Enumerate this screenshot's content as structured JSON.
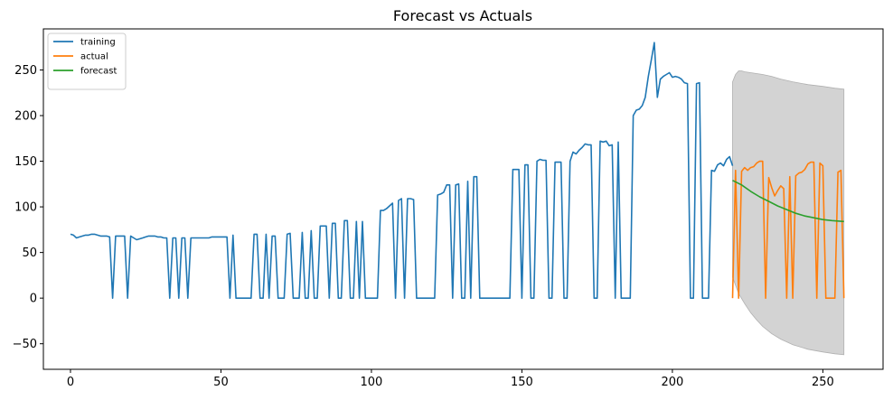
{
  "chart_data": {
    "type": "line",
    "title": "Forecast vs Actuals",
    "xlabel": "",
    "ylabel": "",
    "xlim": [
      -9,
      270
    ],
    "ylim": [
      -78,
      295
    ],
    "x_ticks": [
      0,
      50,
      100,
      150,
      200,
      250
    ],
    "y_ticks": [
      -50,
      0,
      50,
      100,
      150,
      200,
      250
    ],
    "grid": false,
    "legend": {
      "position": "top-left",
      "entries": [
        "training",
        "actual",
        "forecast"
      ]
    },
    "colors": {
      "training": "#1f77b4",
      "actual": "#ff7f0e",
      "forecast": "#2ca02c",
      "band": "#d3d3d3"
    },
    "series": [
      {
        "name": "training",
        "points": [
          [
            0,
            70
          ],
          [
            1,
            69
          ],
          [
            2,
            66
          ],
          [
            3,
            67
          ],
          [
            4,
            68
          ],
          [
            5,
            69
          ],
          [
            6,
            69
          ],
          [
            7,
            70
          ],
          [
            8,
            70
          ],
          [
            9,
            69
          ],
          [
            10,
            68
          ],
          [
            11,
            68
          ],
          [
            12,
            68
          ],
          [
            13,
            67
          ],
          [
            14,
            0
          ],
          [
            15,
            68
          ],
          [
            16,
            68
          ],
          [
            17,
            68
          ],
          [
            18,
            68
          ],
          [
            19,
            0
          ],
          [
            20,
            68
          ],
          [
            21,
            66
          ],
          [
            22,
            64
          ],
          [
            23,
            65
          ],
          [
            24,
            66
          ],
          [
            25,
            67
          ],
          [
            26,
            68
          ],
          [
            27,
            68
          ],
          [
            28,
            68
          ],
          [
            29,
            67
          ],
          [
            30,
            67
          ],
          [
            31,
            66
          ],
          [
            32,
            66
          ],
          [
            33,
            0
          ],
          [
            34,
            66
          ],
          [
            35,
            66
          ],
          [
            36,
            0
          ],
          [
            37,
            66
          ],
          [
            38,
            66
          ],
          [
            39,
            0
          ],
          [
            40,
            66
          ],
          [
            41,
            66
          ],
          [
            42,
            66
          ],
          [
            43,
            66
          ],
          [
            44,
            66
          ],
          [
            45,
            66
          ],
          [
            46,
            66
          ],
          [
            47,
            67
          ],
          [
            48,
            67
          ],
          [
            49,
            67
          ],
          [
            50,
            67
          ],
          [
            51,
            67
          ],
          [
            52,
            67
          ],
          [
            53,
            0
          ],
          [
            54,
            69
          ],
          [
            55,
            0
          ],
          [
            56,
            0
          ],
          [
            57,
            0
          ],
          [
            58,
            0
          ],
          [
            59,
            0
          ],
          [
            60,
            0
          ],
          [
            61,
            70
          ],
          [
            62,
            70
          ],
          [
            63,
            0
          ],
          [
            64,
            0
          ],
          [
            65,
            70
          ],
          [
            66,
            0
          ],
          [
            67,
            68
          ],
          [
            68,
            68
          ],
          [
            69,
            0
          ],
          [
            70,
            0
          ],
          [
            71,
            0
          ],
          [
            72,
            70
          ],
          [
            73,
            71
          ],
          [
            74,
            0
          ],
          [
            75,
            0
          ],
          [
            76,
            0
          ],
          [
            77,
            72
          ],
          [
            78,
            0
          ],
          [
            79,
            0
          ],
          [
            80,
            74
          ],
          [
            81,
            0
          ],
          [
            82,
            0
          ],
          [
            83,
            79
          ],
          [
            84,
            79
          ],
          [
            85,
            79
          ],
          [
            86,
            0
          ],
          [
            87,
            82
          ],
          [
            88,
            82
          ],
          [
            89,
            0
          ],
          [
            90,
            0
          ],
          [
            91,
            85
          ],
          [
            92,
            85
          ],
          [
            93,
            0
          ],
          [
            94,
            0
          ],
          [
            95,
            84
          ],
          [
            96,
            0
          ],
          [
            97,
            84
          ],
          [
            98,
            0
          ],
          [
            99,
            0
          ],
          [
            100,
            0
          ],
          [
            101,
            0
          ],
          [
            102,
            0
          ],
          [
            103,
            96
          ],
          [
            104,
            96
          ],
          [
            105,
            98
          ],
          [
            106,
            101
          ],
          [
            107,
            104
          ],
          [
            108,
            0
          ],
          [
            109,
            107
          ],
          [
            110,
            109
          ],
          [
            111,
            0
          ],
          [
            112,
            109
          ],
          [
            113,
            109
          ],
          [
            114,
            108
          ],
          [
            115,
            0
          ],
          [
            116,
            0
          ],
          [
            117,
            0
          ],
          [
            118,
            0
          ],
          [
            119,
            0
          ],
          [
            120,
            0
          ],
          [
            121,
            0
          ],
          [
            122,
            113
          ],
          [
            123,
            114
          ],
          [
            124,
            116
          ],
          [
            125,
            124
          ],
          [
            126,
            124
          ],
          [
            127,
            0
          ],
          [
            128,
            124
          ],
          [
            129,
            125
          ],
          [
            130,
            0
          ],
          [
            131,
            0
          ],
          [
            132,
            128
          ],
          [
            133,
            0
          ],
          [
            134,
            133
          ],
          [
            135,
            133
          ],
          [
            136,
            0
          ],
          [
            137,
            0
          ],
          [
            138,
            0
          ],
          [
            139,
            0
          ],
          [
            140,
            0
          ],
          [
            141,
            0
          ],
          [
            142,
            0
          ],
          [
            143,
            0
          ],
          [
            144,
            0
          ],
          [
            145,
            0
          ],
          [
            146,
            0
          ],
          [
            147,
            141
          ],
          [
            148,
            141
          ],
          [
            149,
            141
          ],
          [
            150,
            0
          ],
          [
            151,
            146
          ],
          [
            152,
            146
          ],
          [
            153,
            0
          ],
          [
            154,
            0
          ],
          [
            155,
            150
          ],
          [
            156,
            152
          ],
          [
            157,
            151
          ],
          [
            158,
            151
          ],
          [
            159,
            0
          ],
          [
            160,
            0
          ],
          [
            161,
            149
          ],
          [
            162,
            149
          ],
          [
            163,
            149
          ],
          [
            164,
            0
          ],
          [
            165,
            0
          ],
          [
            166,
            150
          ],
          [
            167,
            160
          ],
          [
            168,
            158
          ],
          [
            169,
            162
          ],
          [
            170,
            165
          ],
          [
            171,
            169
          ],
          [
            172,
            168
          ],
          [
            173,
            168
          ],
          [
            174,
            0
          ],
          [
            175,
            0
          ],
          [
            176,
            172
          ],
          [
            177,
            171
          ],
          [
            178,
            172
          ],
          [
            179,
            167
          ],
          [
            180,
            168
          ],
          [
            181,
            0
          ],
          [
            182,
            171
          ],
          [
            183,
            0
          ],
          [
            184,
            0
          ],
          [
            185,
            0
          ],
          [
            186,
            0
          ],
          [
            187,
            200
          ],
          [
            188,
            206
          ],
          [
            189,
            207
          ],
          [
            190,
            211
          ],
          [
            191,
            220
          ],
          [
            192,
            243
          ],
          [
            193,
            261
          ],
          [
            194,
            280
          ],
          [
            195,
            220
          ],
          [
            196,
            240
          ],
          [
            197,
            243
          ],
          [
            198,
            245
          ],
          [
            199,
            247
          ],
          [
            200,
            242
          ],
          [
            201,
            243
          ],
          [
            202,
            242
          ],
          [
            203,
            240
          ],
          [
            204,
            236
          ],
          [
            205,
            235
          ],
          [
            206,
            0
          ],
          [
            207,
            0
          ],
          [
            208,
            235
          ],
          [
            209,
            236
          ],
          [
            210,
            0
          ],
          [
            211,
            0
          ],
          [
            212,
            0
          ],
          [
            213,
            140
          ],
          [
            214,
            139
          ],
          [
            215,
            146
          ],
          [
            216,
            148
          ],
          [
            217,
            145
          ],
          [
            218,
            152
          ],
          [
            219,
            155
          ],
          [
            220,
            145
          ]
        ]
      },
      {
        "name": "actual",
        "points": [
          [
            220,
            0
          ],
          [
            221,
            140
          ],
          [
            222,
            0
          ],
          [
            223,
            139
          ],
          [
            224,
            143
          ],
          [
            225,
            140
          ],
          [
            226,
            143
          ],
          [
            227,
            144
          ],
          [
            228,
            148
          ],
          [
            229,
            150
          ],
          [
            230,
            150
          ],
          [
            231,
            0
          ],
          [
            232,
            132
          ],
          [
            233,
            121
          ],
          [
            234,
            112
          ],
          [
            235,
            118
          ],
          [
            236,
            123
          ],
          [
            237,
            120
          ],
          [
            238,
            0
          ],
          [
            239,
            133
          ],
          [
            240,
            0
          ],
          [
            241,
            134
          ],
          [
            242,
            137
          ],
          [
            243,
            138
          ],
          [
            244,
            141
          ],
          [
            245,
            147
          ],
          [
            246,
            149
          ],
          [
            247,
            149
          ],
          [
            248,
            0
          ],
          [
            249,
            148
          ],
          [
            250,
            145
          ],
          [
            251,
            0
          ],
          [
            252,
            0
          ],
          [
            253,
            0
          ],
          [
            254,
            0
          ],
          [
            255,
            138
          ],
          [
            256,
            140
          ],
          [
            257,
            0
          ]
        ]
      },
      {
        "name": "forecast",
        "points": [
          [
            220,
            129
          ],
          [
            223,
            124
          ],
          [
            226,
            117
          ],
          [
            229,
            111
          ],
          [
            232,
            106
          ],
          [
            235,
            101
          ],
          [
            238,
            97
          ],
          [
            241,
            93
          ],
          [
            244,
            90
          ],
          [
            247,
            88
          ],
          [
            250,
            86
          ],
          [
            253,
            85
          ],
          [
            257,
            84
          ]
        ]
      }
    ],
    "confidence_band": {
      "upper": [
        [
          220,
          237
        ],
        [
          221,
          245
        ],
        [
          222,
          249
        ],
        [
          223,
          249
        ],
        [
          224,
          248
        ],
        [
          226,
          247
        ],
        [
          228,
          246
        ],
        [
          230,
          245
        ],
        [
          233,
          243
        ],
        [
          236,
          240
        ],
        [
          240,
          237
        ],
        [
          245,
          234
        ],
        [
          250,
          232
        ],
        [
          254,
          230
        ],
        [
          257,
          229
        ]
      ],
      "lower": [
        [
          220,
          23
        ],
        [
          222,
          5
        ],
        [
          224,
          -6
        ],
        [
          226,
          -16
        ],
        [
          228,
          -24
        ],
        [
          230,
          -31
        ],
        [
          233,
          -39
        ],
        [
          236,
          -45
        ],
        [
          240,
          -51
        ],
        [
          245,
          -56
        ],
        [
          250,
          -59
        ],
        [
          254,
          -61
        ],
        [
          257,
          -62
        ]
      ]
    }
  }
}
